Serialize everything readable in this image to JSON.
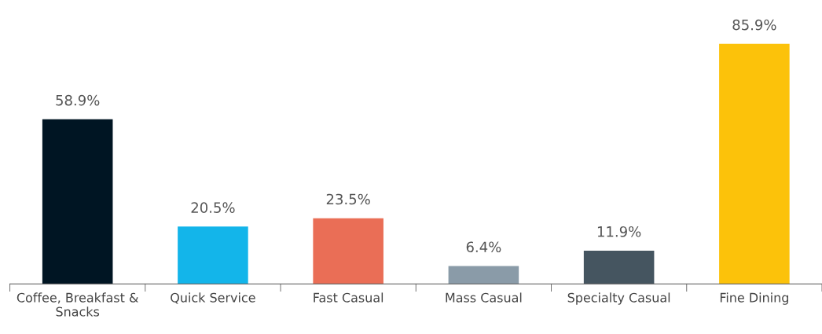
{
  "chart_data": {
    "type": "bar",
    "categories": [
      "Coffee, Breakfast &\nSnacks",
      "Quick Service",
      "Fast Casual",
      "Mass Casual",
      "Specialty Casual",
      "Fine Dining"
    ],
    "values": [
      58.9,
      20.5,
      23.5,
      6.4,
      11.9,
      85.9
    ],
    "colors": [
      "#001523",
      "#13b5ea",
      "#ea6e56",
      "#8a9ba8",
      "#455560",
      "#fcc20a"
    ],
    "value_labels": [
      "58.9%",
      "20.5%",
      "23.5%",
      "6.4%",
      "11.9%",
      "85.9%"
    ],
    "tick_labels": "x",
    "grid": false,
    "legend": false
  }
}
